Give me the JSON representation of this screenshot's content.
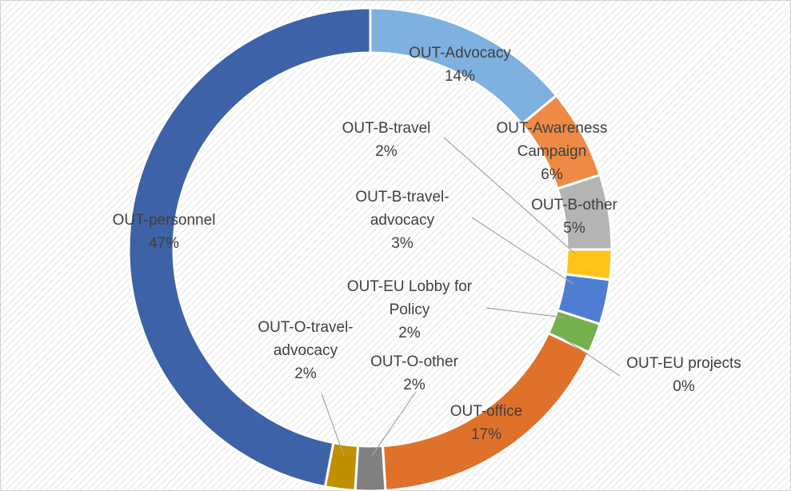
{
  "chart_data": {
    "type": "donut",
    "categories": [
      "OUT-Advocacy",
      "OUT-Awareness Campaign",
      "OUT-B-other",
      "OUT-B-travel",
      "OUT-B-travel-advocacy",
      "OUT-EU Lobby for Policy",
      "OUT-EU projects",
      "OUT-office",
      "OUT-O-other",
      "OUT-O-travel-advocacy",
      "OUT-personnel"
    ],
    "values": [
      14,
      6,
      5,
      2,
      3,
      2,
      0,
      17,
      2,
      2,
      47
    ],
    "value_labels": [
      "14%",
      "6%",
      "5%",
      "2%",
      "3%",
      "2%",
      "0%",
      "17%",
      "2%",
      "2%",
      "47%"
    ],
    "colors": [
      "#7eb0e0",
      "#ee8a45",
      "#b4b4b4",
      "#ffc31a",
      "#4f7ed0",
      "#74b04c",
      "#2f528f",
      "#e0712a",
      "#808080",
      "#c09000",
      "#3d62a8"
    ]
  }
}
